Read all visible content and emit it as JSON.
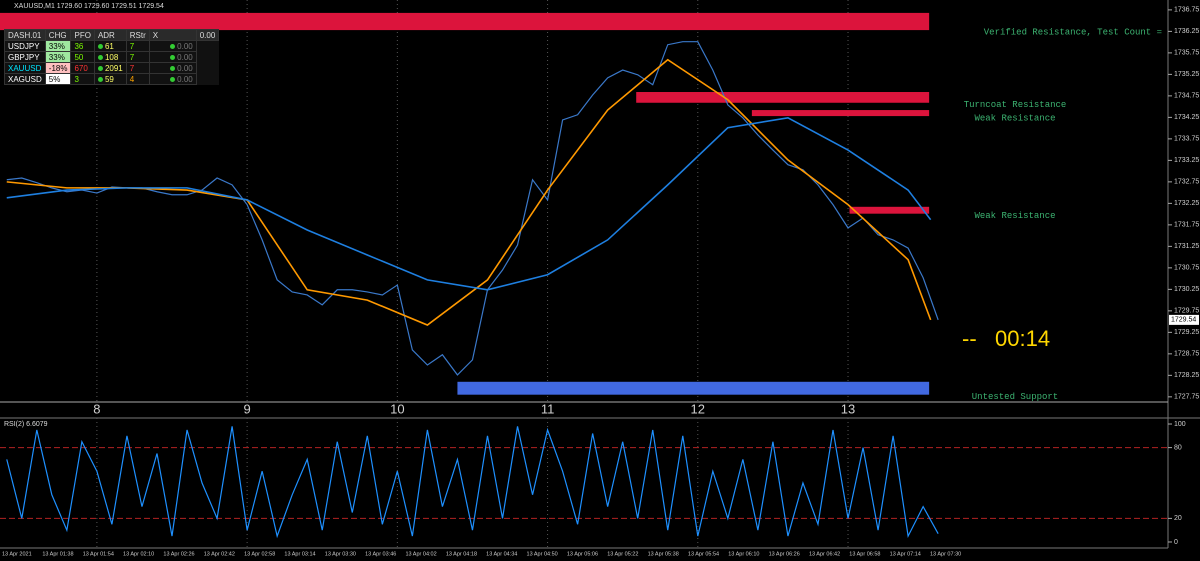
{
  "dashboard": {
    "header": [
      "DASH.01",
      "CHG",
      "PFO",
      "ADR",
      "RStr",
      "X",
      "0.00"
    ],
    "rows": [
      [
        "USDJPY",
        "33%",
        "36",
        "61",
        "7",
        "0.00"
      ],
      [
        "GBPJPY",
        "33%",
        "50",
        "108",
        "7",
        "0.00"
      ],
      [
        "XAUUSD",
        "-18%",
        "670",
        "2091",
        "7",
        "0.00"
      ],
      [
        "XAGUSD",
        "5%",
        "3",
        "59",
        "4",
        "0.00"
      ]
    ]
  },
  "chart_data": [
    {
      "type": "line",
      "title": "XAUUSD,M1  1729.60 1729.60 1729.51 1729.54",
      "x": [
        7.4,
        7.5,
        7.6,
        7.7,
        7.8,
        7.9,
        8.0,
        8.1,
        8.2,
        8.3,
        8.4,
        8.5,
        8.6,
        8.7,
        8.8,
        8.9,
        9.0,
        9.1,
        9.2,
        9.3,
        9.4,
        9.5,
        9.6,
        9.7,
        9.8,
        9.9,
        10.0,
        10.1,
        10.2,
        10.3,
        10.4,
        10.5,
        10.6,
        10.7,
        10.8,
        10.9,
        11.0,
        11.1,
        11.2,
        11.3,
        11.4,
        11.5,
        11.6,
        11.7,
        11.8,
        11.9,
        12.0,
        12.1,
        12.2,
        12.3,
        12.4,
        12.5,
        12.6,
        12.7,
        12.8,
        12.9,
        13.0,
        13.1,
        13.2,
        13.3,
        13.4,
        13.5,
        13.6
      ],
      "series": [
        {
          "color": "#3a78c9",
          "values": [
            1732.8,
            1732.84,
            1732.73,
            1732.61,
            1732.52,
            1732.56,
            1732.49,
            1732.63,
            1732.61,
            1732.61,
            1732.52,
            1732.45,
            1732.45,
            1732.56,
            1732.84,
            1732.68,
            1732.22,
            1731.4,
            1730.47,
            1730.19,
            1730.12,
            1729.89,
            1730.24,
            1730.24,
            1730.19,
            1730.12,
            1730.35,
            1728.84,
            1728.49,
            1728.73,
            1728.26,
            1728.61,
            1730.24,
            1730.7,
            1731.28,
            1732.8,
            1732.33,
            1734.19,
            1734.31,
            1734.77,
            1735.17,
            1735.35,
            1735.24,
            1735.01,
            1735.94,
            1736.01,
            1736.01,
            1735.35,
            1734.54,
            1734.24,
            1733.84,
            1733.49,
            1733.15,
            1733.03,
            1732.68,
            1732.22,
            1731.68,
            1731.91,
            1731.52,
            1731.4,
            1731.21,
            1730.52,
            1729.54
          ]
        },
        {
          "color": "#ff9900",
          "x": [
            7.4,
            7.8,
            8.2,
            8.6,
            9.0,
            9.4,
            9.8,
            10.2,
            10.6,
            11.0,
            11.4,
            11.8,
            12.2,
            12.6,
            13.0,
            13.4,
            13.55
          ],
          "values": [
            1732.75,
            1732.61,
            1732.61,
            1732.56,
            1732.33,
            1730.24,
            1730.0,
            1729.42,
            1730.47,
            1732.56,
            1734.42,
            1735.59,
            1734.66,
            1733.26,
            1732.22,
            1730.94,
            1729.54
          ]
        },
        {
          "color": "#1e7fe0",
          "x": [
            7.4,
            7.8,
            8.2,
            8.6,
            9.0,
            9.4,
            9.8,
            10.2,
            10.6,
            11.0,
            11.4,
            11.8,
            12.2,
            12.6,
            13.0,
            13.4,
            13.55
          ],
          "values": [
            1732.38,
            1732.56,
            1732.61,
            1732.61,
            1732.33,
            1731.63,
            1731.05,
            1730.47,
            1730.24,
            1730.59,
            1731.4,
            1732.68,
            1734.01,
            1734.24,
            1733.49,
            1732.56,
            1731.87
          ]
        }
      ],
      "zones": [
        {
          "label": "Verified Resistance, Test Count =",
          "color": "#dc143c",
          "x": [
            7.355,
            13.54
          ],
          "y": [
            1736.28,
            1736.68
          ]
        },
        {
          "label": "Turncoat Resistance",
          "color": "#dc143c",
          "x": [
            11.59,
            13.54
          ],
          "y": [
            1734.59,
            1734.84
          ]
        },
        {
          "label": "Weak Resistance",
          "color": "#dc143c",
          "x": [
            12.36,
            13.54
          ],
          "y": [
            1734.28,
            1734.42
          ]
        },
        {
          "label": "Weak Resistance",
          "color": "#dc143c",
          "x": [
            13.01,
            13.54
          ],
          "y": [
            1732.01,
            1732.17
          ]
        },
        {
          "label": "Untested Support",
          "color": "#4169e1",
          "x": [
            10.4,
            13.54
          ],
          "y": [
            1727.8,
            1728.1
          ]
        }
      ],
      "last_price": 1729.54,
      "timer": {
        "prefix": "--",
        "value": "00:14"
      },
      "xlim": [
        7.355,
        15.13
      ],
      "xticks": [
        8,
        9,
        10,
        11,
        12,
        13
      ],
      "grid": "x",
      "ylim": [
        1727.63,
        1736.98
      ],
      "yticks": [
        1736.75,
        1736.25,
        1735.75,
        1735.25,
        1734.75,
        1734.25,
        1733.75,
        1733.25,
        1732.75,
        1732.25,
        1731.75,
        1731.25,
        1730.75,
        1730.25,
        1729.75,
        1729.25,
        1728.75,
        1728.25,
        1727.75
      ]
    },
    {
      "type": "line",
      "title": "RSI(2) 6.6079",
      "series": [
        {
          "color": "#1e90ff",
          "values": [
            70,
            20,
            95,
            40,
            10,
            85,
            60,
            15,
            90,
            30,
            75,
            5,
            95,
            50,
            20,
            98,
            10,
            60,
            5,
            40,
            70,
            10,
            85,
            25,
            90,
            15,
            60,
            5,
            95,
            30,
            70,
            10,
            90,
            20,
            98,
            40,
            95,
            60,
            15,
            92,
            30,
            85,
            20,
            95,
            10,
            90,
            5,
            60,
            20,
            70,
            10,
            85,
            5,
            50,
            15,
            95,
            20,
            80,
            10,
            90,
            5,
            30,
            7
          ]
        }
      ],
      "levels": [
        80,
        20
      ],
      "level_color": "#b22222",
      "ylim": [
        -5.1,
        105.1
      ],
      "yticks": [
        100,
        80,
        20,
        0
      ],
      "time_labels": [
        "13 Apr 2021",
        "13 Apr 01:38",
        "13 Apr 01:54",
        "13 Apr 02:10",
        "13 Apr 02:26",
        "13 Apr 02:42",
        "13 Apr 02:58",
        "13 Apr 03:14",
        "13 Apr 03:30",
        "13 Apr 03:46",
        "13 Apr 04:02",
        "13 Apr 04:18",
        "13 Apr 04:34",
        "13 Apr 04:50",
        "13 Apr 05:06",
        "13 Apr 05:22",
        "13 Apr 05:38",
        "13 Apr 05:54",
        "13 Apr 06:10",
        "13 Apr 06:26",
        "13 Apr 06:42",
        "13 Apr 06:58",
        "13 Apr 07:14",
        "13 Apr 07:30"
      ]
    }
  ]
}
